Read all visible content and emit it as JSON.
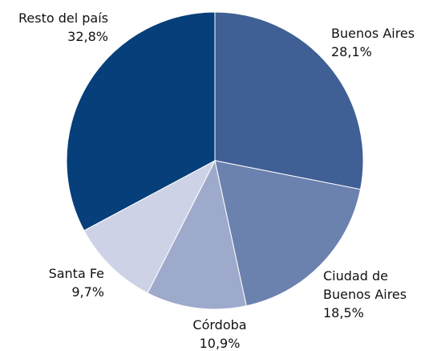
{
  "chart_data": {
    "type": "pie",
    "categories": [
      "Buenos Aires",
      "Ciudad de Buenos Aires",
      "Córdoba",
      "Santa Fe",
      "Resto del país"
    ],
    "values": [
      28.1,
      18.5,
      10.9,
      9.7,
      32.8
    ],
    "value_labels": [
      "28,1%",
      "18,5%",
      "10,9%",
      "9,7%",
      "32,8%"
    ],
    "colors": [
      "#3f5f95",
      "#6b81ae",
      "#9eaacb",
      "#cdd2e6",
      "#063f7a"
    ]
  }
}
